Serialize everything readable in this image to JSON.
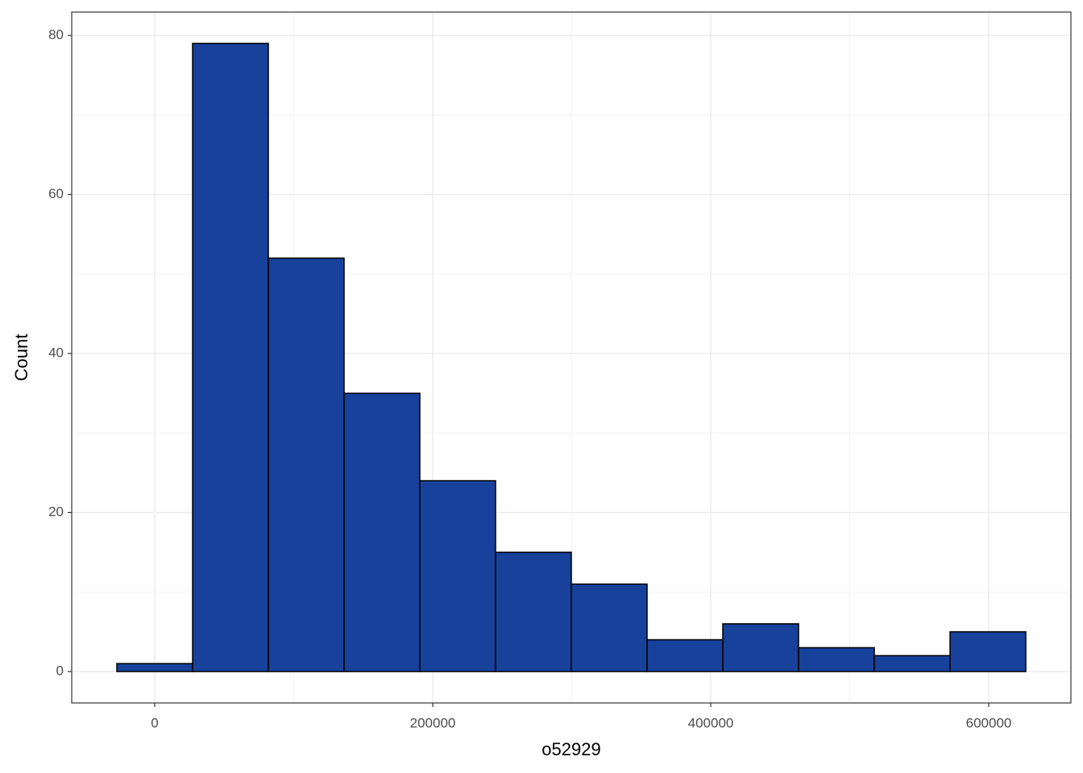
{
  "chart_data": {
    "type": "histogram",
    "x_label": "o52929",
    "y_label": "Count",
    "bins": [
      -27246,
      27247,
      81740,
      136233,
      190726,
      245219,
      299712,
      354205,
      408698,
      463191,
      517684,
      572177,
      626670
    ],
    "values": [
      1,
      79,
      52,
      35,
      24,
      15,
      11,
      4,
      6,
      3,
      2,
      5
    ],
    "color": "#17419a",
    "edgecolor": "#000000",
    "xlim": [
      -59710,
      659130
    ],
    "xticks": [
      0,
      200000,
      400000,
      600000
    ],
    "ylim": [
      -3.95,
      82.94
    ],
    "yticks": [
      0,
      20,
      40,
      60,
      80
    ],
    "grid": true
  }
}
